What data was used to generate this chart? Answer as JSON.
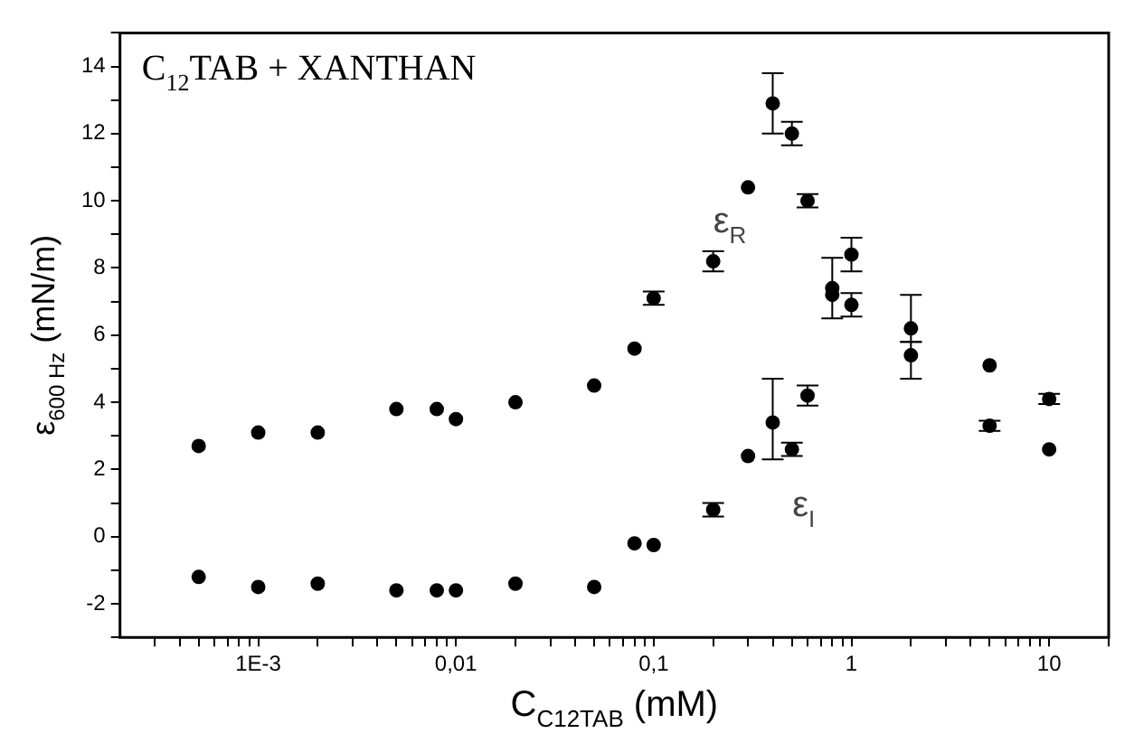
{
  "chart_data": {
    "type": "scatter",
    "title": "C$_{12}$TAB + XANTHAN",
    "xlabel": "C$_{C12TAB}$ (mM)",
    "ylabel": "ε$_{600 Hz}$ (mN/m)",
    "x": [
      0.0005,
      0.001,
      0.002,
      0.005,
      0.008,
      0.01,
      0.02,
      0.05,
      0.08,
      0.1,
      0.2,
      0.3,
      0.4,
      0.5,
      0.6,
      0.8,
      1,
      2,
      5,
      10
    ],
    "series": [
      {
        "color": "#000000",
        "values": [
          2.7,
          3.1,
          3.1,
          3.8,
          3.8,
          3.5,
          4.0,
          4.5,
          5.6,
          7.1,
          8.2,
          10.4,
          12.9,
          12.0,
          10.0,
          7.4,
          8.4,
          6.2,
          5.1,
          4.1
        ],
        "errors": [
          null,
          null,
          null,
          null,
          null,
          null,
          null,
          null,
          null,
          0.2,
          0.3,
          null,
          [
            12.0,
            13.8
          ],
          0.35,
          0.2,
          [
            6.5,
            8.3
          ],
          0.5,
          [
            5.8,
            7.2
          ],
          null,
          0.15
        ]
      },
      {
        "color": "#000000",
        "values": [
          -1.2,
          -1.5,
          -1.4,
          -1.6,
          -1.6,
          -1.6,
          -1.4,
          -1.5,
          -0.2,
          -0.25,
          0.8,
          2.4,
          3.4,
          2.6,
          4.2,
          7.2,
          6.9,
          5.4,
          3.3,
          2.6
        ],
        "errors": [
          null,
          null,
          null,
          null,
          null,
          null,
          null,
          null,
          null,
          null,
          0.2,
          null,
          [
            2.3,
            4.7
          ],
          0.2,
          0.3,
          null,
          0.35,
          [
            4.7,
            5.8
          ],
          0.15,
          null
        ]
      }
    ],
    "annotations": [
      "ε$_{R}$",
      "ε$_{I}$"
    ],
    "xlim": [
      0.0002,
      20
    ],
    "ylim": [
      -3,
      15
    ],
    "log": "x",
    "xticks": [
      {
        "value": 0.0003,
        "label": null
      },
      {
        "value": 0.0004,
        "label": null
      },
      {
        "value": 0.0005,
        "label": null
      },
      {
        "value": 0.0006,
        "label": null
      },
      {
        "value": 0.0007,
        "label": null
      },
      {
        "value": 0.0008,
        "label": null
      },
      {
        "value": 0.0009,
        "label": null
      },
      {
        "value": 0.001,
        "label": "1E-3"
      },
      {
        "value": 0.002,
        "label": null
      },
      {
        "value": 0.003,
        "label": null
      },
      {
        "value": 0.004,
        "label": null
      },
      {
        "value": 0.005,
        "label": null
      },
      {
        "value": 0.006,
        "label": null
      },
      {
        "value": 0.007,
        "label": null
      },
      {
        "value": 0.008,
        "label": null
      },
      {
        "value": 0.009,
        "label": null
      },
      {
        "value": 0.01,
        "label": "0,01"
      },
      {
        "value": 0.02,
        "label": null
      },
      {
        "value": 0.03,
        "label": null
      },
      {
        "value": 0.04,
        "label": null
      },
      {
        "value": 0.05,
        "label": null
      },
      {
        "value": 0.06,
        "label": null
      },
      {
        "value": 0.07,
        "label": null
      },
      {
        "value": 0.08,
        "label": null
      },
      {
        "value": 0.09,
        "label": null
      },
      {
        "value": 0.1,
        "label": "0,1"
      },
      {
        "value": 0.2,
        "label": null
      },
      {
        "value": 0.3,
        "label": null
      },
      {
        "value": 0.4,
        "label": null
      },
      {
        "value": 0.5,
        "label": null
      },
      {
        "value": 0.6,
        "label": null
      },
      {
        "value": 0.7,
        "label": null
      },
      {
        "value": 0.8,
        "label": null
      },
      {
        "value": 0.9,
        "label": null
      },
      1,
      {
        "value": 2,
        "label": null
      },
      {
        "value": 3,
        "label": null
      },
      {
        "value": 4,
        "label": null
      },
      {
        "value": 5,
        "label": null
      },
      {
        "value": 6,
        "label": null
      },
      {
        "value": 7,
        "label": null
      },
      {
        "value": 8,
        "label": null
      },
      {
        "value": 9,
        "label": null
      },
      10,
      {
        "value": 20,
        "label": null
      }
    ],
    "yticks": [
      {
        "value": -3,
        "label": null
      },
      -2,
      {
        "value": -1,
        "label": null
      },
      0,
      {
        "value": 1,
        "label": null
      },
      2,
      {
        "value": 3,
        "label": null
      },
      4,
      {
        "value": 5,
        "label": null
      },
      6,
      {
        "value": 7,
        "label": null
      },
      8,
      {
        "value": 9,
        "label": null
      },
      10,
      {
        "value": 11,
        "label": null
      },
      12,
      {
        "value": 13,
        "label": null
      },
      14,
      {
        "value": 15,
        "label": null
      }
    ],
    "grid": false,
    "marker": "circle"
  }
}
